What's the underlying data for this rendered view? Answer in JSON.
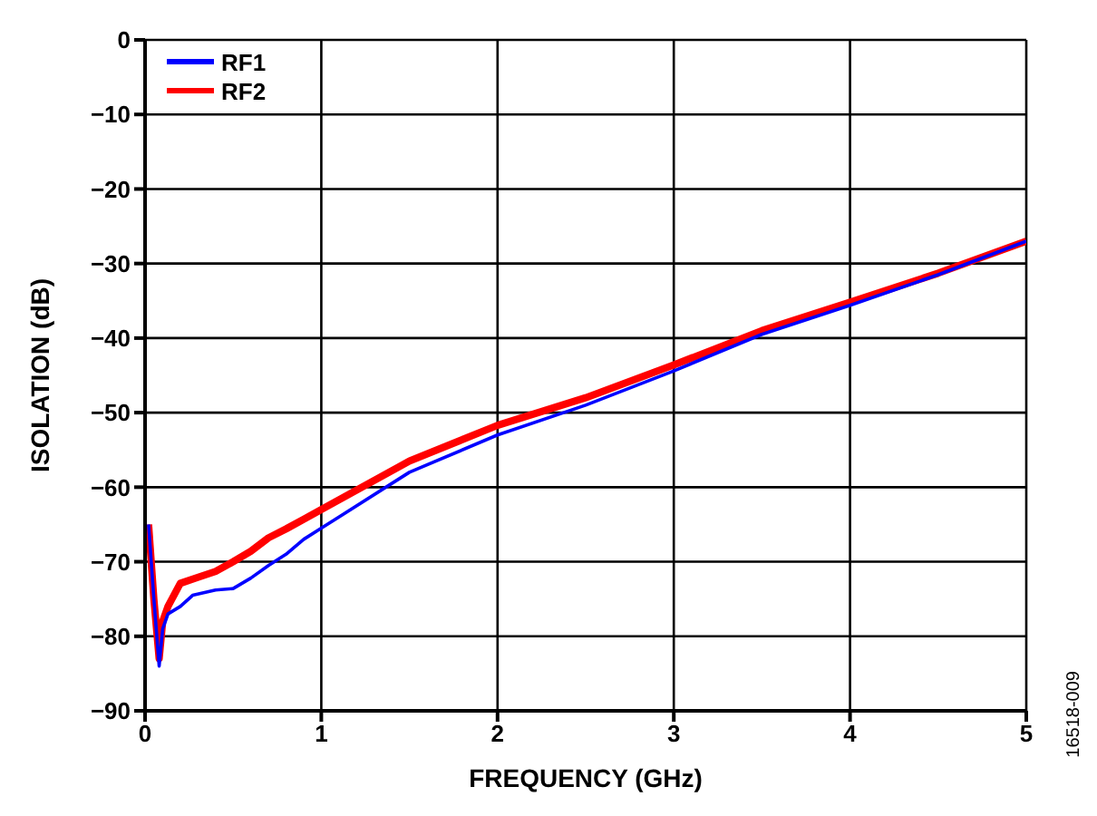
{
  "chart_data": {
    "type": "line",
    "xlabel": "FREQUENCY (GHz)",
    "ylabel": "ISOLATION (dB)",
    "xlim": [
      0,
      5
    ],
    "xticks": [
      0,
      1,
      2,
      3,
      4,
      5
    ],
    "ylim": [
      -90,
      0
    ],
    "yticks": [
      -90,
      -80,
      -70,
      -60,
      -50,
      -40,
      -30,
      -20,
      -10,
      0
    ],
    "grid": true,
    "legend": "top left",
    "line_style": "solid",
    "marker": "none",
    "annotations": [
      "16518-009"
    ],
    "series": [
      {
        "name": "RF1",
        "color": "#0000ff",
        "x": [
          0.02,
          0.05,
          0.08,
          0.1,
          0.13,
          0.2,
          0.27,
          0.4,
          0.5,
          0.6,
          0.7,
          0.8,
          0.9,
          1.0,
          1.1,
          1.5,
          2,
          2.5,
          3,
          3.5,
          4,
          4.5,
          5
        ],
        "values": [
          -65,
          -75,
          -84,
          -79,
          -77,
          -76,
          -74.5,
          -73.8,
          -73.6,
          -72.2,
          -70.5,
          -69,
          -67,
          -65.5,
          -64,
          -58,
          -53,
          -49,
          -44.4,
          -39.5,
          -35.6,
          -31.5,
          -27
        ]
      },
      {
        "name": "RF2",
        "color": "#ff0000",
        "x": [
          0.02,
          0.05,
          0.08,
          0.1,
          0.13,
          0.2,
          0.3,
          0.4,
          0.5,
          0.6,
          0.7,
          0.8,
          0.9,
          1.0,
          1.5,
          2,
          2.5,
          3,
          3.5,
          4,
          4.5,
          5
        ],
        "values": [
          -65,
          -75,
          -83,
          -78,
          -76,
          -72.9,
          -72.1,
          -71.3,
          -70,
          -68.6,
          -66.8,
          -65.6,
          -64.3,
          -63,
          -56.5,
          -51.7,
          -48,
          -43.6,
          -39,
          -35.2,
          -31.3,
          -27
        ]
      }
    ]
  }
}
